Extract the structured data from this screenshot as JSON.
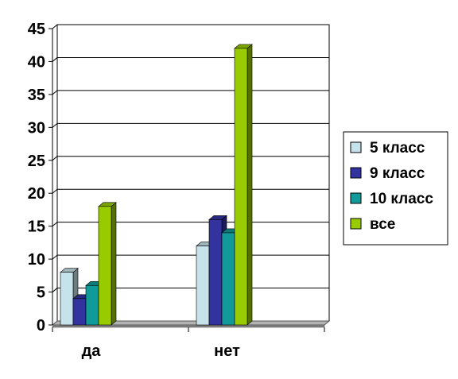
{
  "chart_data": {
    "type": "bar",
    "categories": [
      "да",
      "нет"
    ],
    "series": [
      {
        "name": "5 класс",
        "values": [
          8,
          12
        ],
        "color": "#c6e2ea"
      },
      {
        "name": "9 класс",
        "values": [
          4,
          16
        ],
        "color": "#3333a0"
      },
      {
        "name": "10 класс",
        "values": [
          6,
          14
        ],
        "color": "#129a9a"
      },
      {
        "name": "все",
        "values": [
          18,
          42
        ],
        "color": "#99cc00"
      }
    ],
    "ylim": [
      0,
      45
    ],
    "yticks": [
      "0",
      "5",
      "10",
      "15",
      "20",
      "25",
      "30",
      "35",
      "40",
      "45"
    ],
    "grid": true,
    "legend": "right",
    "style": "3d-clustered-bar"
  }
}
